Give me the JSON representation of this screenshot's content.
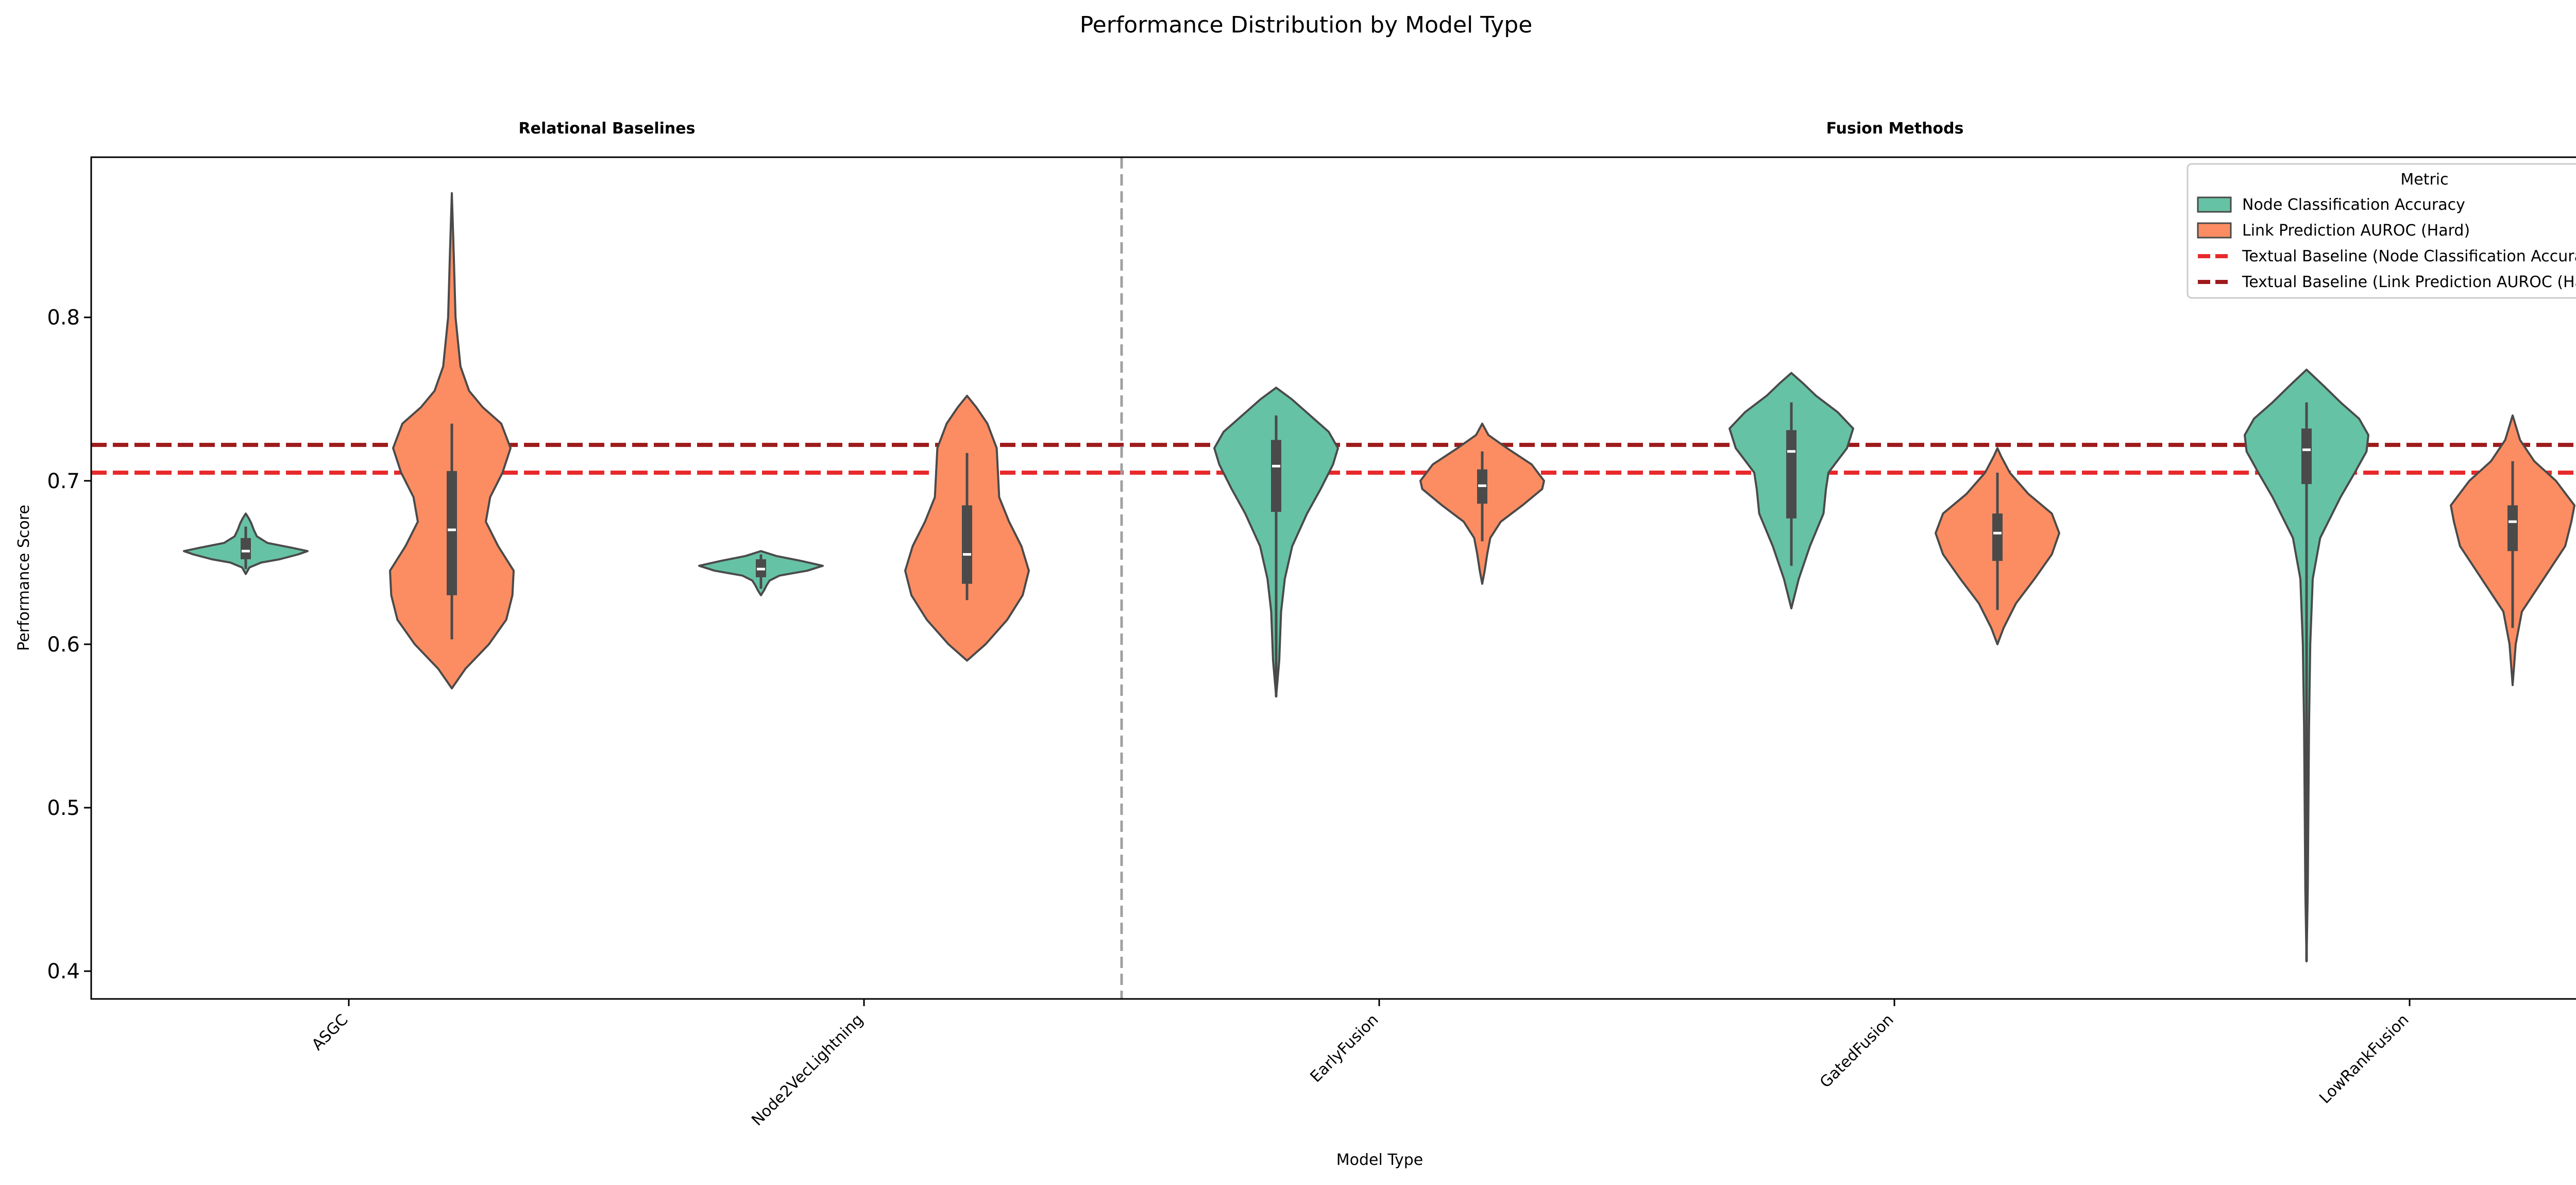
{
  "chart_data": {
    "type": "violin",
    "title": "Performance Distribution by Model Type",
    "group_titles": [
      "Relational Baselines",
      "Fusion Methods"
    ],
    "xlabel": "Model Type",
    "ylabel": "Performance Score",
    "categories": [
      "ASGC",
      "Node2VecLightning",
      "EarlyFusion",
      "GatedFusion",
      "LowRankFusion"
    ],
    "group_separator_after_index": 1,
    "ylim": [
      0.383,
      0.898
    ],
    "yticks": [
      0.4,
      0.5,
      0.6,
      0.7,
      0.8
    ],
    "ytick_labels": [
      "0.4",
      "0.5",
      "0.6",
      "0.7",
      "0.8"
    ],
    "grid": false,
    "legend": {
      "title": "Metric",
      "position": "top-right",
      "entries": [
        {
          "label": "Node Classification Accuracy",
          "kind": "patch",
          "color": "#66c2a5"
        },
        {
          "label": "Link Prediction AUROC (Hard)",
          "kind": "patch",
          "color": "#fc8d62"
        },
        {
          "label": "Textual Baseline (Node Classification Accuracy)",
          "kind": "dashed",
          "color": "#e8292b"
        },
        {
          "label": "Textual Baseline (Link Prediction AUROC (Hard))",
          "kind": "dashed",
          "color": "#9e1b1b"
        }
      ]
    },
    "baselines": [
      {
        "name": "Textual Baseline (Node Classification Accuracy)",
        "value": 0.705,
        "color": "#e8292b"
      },
      {
        "name": "Textual Baseline (Link Prediction AUROC (Hard))",
        "value": 0.722,
        "color": "#9e1b1b"
      }
    ],
    "series": [
      {
        "name": "Node Classification Accuracy",
        "color": "#66c2a5",
        "violins": [
          {
            "category": "ASGC",
            "min": 0.643,
            "max": 0.68,
            "q1": 0.652,
            "median": 0.657,
            "q3": 0.665,
            "whisker_low": 0.646,
            "whisker_high": 0.672,
            "profile": [
              [
                0.643,
                0.0
              ],
              [
                0.647,
                0.06
              ],
              [
                0.65,
                0.25
              ],
              [
                0.652,
                0.55
              ],
              [
                0.655,
                0.85
              ],
              [
                0.657,
                1.0
              ],
              [
                0.659,
                0.75
              ],
              [
                0.662,
                0.35
              ],
              [
                0.666,
                0.18
              ],
              [
                0.67,
                0.13
              ],
              [
                0.674,
                0.09
              ],
              [
                0.677,
                0.05
              ],
              [
                0.68,
                0.0
              ]
            ]
          },
          {
            "category": "Node2VecLightning",
            "min": 0.63,
            "max": 0.657,
            "q1": 0.641,
            "median": 0.646,
            "q3": 0.652,
            "whisker_low": 0.634,
            "whisker_high": 0.655,
            "profile": [
              [
                0.63,
                0.0
              ],
              [
                0.633,
                0.05
              ],
              [
                0.636,
                0.09
              ],
              [
                0.639,
                0.14
              ],
              [
                0.642,
                0.3
              ],
              [
                0.645,
                0.75
              ],
              [
                0.648,
                1.0
              ],
              [
                0.651,
                0.65
              ],
              [
                0.654,
                0.25
              ],
              [
                0.657,
                0.0
              ]
            ]
          },
          {
            "category": "EarlyFusion",
            "min": 0.568,
            "max": 0.757,
            "q1": 0.681,
            "median": 0.709,
            "q3": 0.725,
            "whisker_low": 0.568,
            "whisker_high": 0.74,
            "profile": [
              [
                0.568,
                0.0
              ],
              [
                0.59,
                0.05
              ],
              [
                0.62,
                0.08
              ],
              [
                0.64,
                0.14
              ],
              [
                0.66,
                0.26
              ],
              [
                0.68,
                0.5
              ],
              [
                0.695,
                0.72
              ],
              [
                0.71,
                0.92
              ],
              [
                0.72,
                1.0
              ],
              [
                0.73,
                0.85
              ],
              [
                0.74,
                0.55
              ],
              [
                0.75,
                0.25
              ],
              [
                0.757,
                0.0
              ]
            ]
          },
          {
            "category": "GatedFusion",
            "min": 0.622,
            "max": 0.766,
            "q1": 0.677,
            "median": 0.718,
            "q3": 0.731,
            "whisker_low": 0.648,
            "whisker_high": 0.748,
            "profile": [
              [
                0.622,
                0.0
              ],
              [
                0.64,
                0.12
              ],
              [
                0.66,
                0.3
              ],
              [
                0.68,
                0.52
              ],
              [
                0.695,
                0.56
              ],
              [
                0.705,
                0.6
              ],
              [
                0.72,
                0.9
              ],
              [
                0.732,
                1.0
              ],
              [
                0.742,
                0.75
              ],
              [
                0.752,
                0.4
              ],
              [
                0.76,
                0.18
              ],
              [
                0.766,
                0.0
              ]
            ]
          },
          {
            "category": "LowRankFusion",
            "min": 0.406,
            "max": 0.768,
            "q1": 0.698,
            "median": 0.719,
            "q3": 0.732,
            "whisker_low": 0.406,
            "whisker_high": 0.748,
            "profile": [
              [
                0.406,
                0.0
              ],
              [
                0.45,
                0.02
              ],
              [
                0.5,
                0.03
              ],
              [
                0.55,
                0.04
              ],
              [
                0.6,
                0.06
              ],
              [
                0.64,
                0.1
              ],
              [
                0.665,
                0.22
              ],
              [
                0.69,
                0.55
              ],
              [
                0.705,
                0.78
              ],
              [
                0.718,
                0.97
              ],
              [
                0.728,
                1.0
              ],
              [
                0.738,
                0.85
              ],
              [
                0.748,
                0.55
              ],
              [
                0.758,
                0.28
              ],
              [
                0.768,
                0.0
              ]
            ]
          }
        ]
      },
      {
        "name": "Link Prediction AUROC (Hard)",
        "color": "#fc8d62",
        "violins": [
          {
            "category": "ASGC",
            "min": 0.573,
            "max": 0.876,
            "q1": 0.63,
            "median": 0.67,
            "q3": 0.706,
            "whisker_low": 0.603,
            "whisker_high": 0.735,
            "profile": [
              [
                0.573,
                0.0
              ],
              [
                0.585,
                0.22
              ],
              [
                0.6,
                0.6
              ],
              [
                0.615,
                0.88
              ],
              [
                0.63,
                0.98
              ],
              [
                0.645,
                1.0
              ],
              [
                0.66,
                0.75
              ],
              [
                0.675,
                0.55
              ],
              [
                0.69,
                0.62
              ],
              [
                0.705,
                0.82
              ],
              [
                0.72,
                0.95
              ],
              [
                0.735,
                0.8
              ],
              [
                0.745,
                0.5
              ],
              [
                0.755,
                0.28
              ],
              [
                0.77,
                0.14
              ],
              [
                0.8,
                0.06
              ],
              [
                0.84,
                0.03
              ],
              [
                0.876,
                0.0
              ]
            ]
          },
          {
            "category": "Node2VecLightning",
            "min": 0.59,
            "max": 0.752,
            "q1": 0.637,
            "median": 0.655,
            "q3": 0.685,
            "whisker_low": 0.627,
            "whisker_high": 0.717,
            "profile": [
              [
                0.59,
                0.0
              ],
              [
                0.6,
                0.3
              ],
              [
                0.615,
                0.65
              ],
              [
                0.63,
                0.9
              ],
              [
                0.645,
                1.0
              ],
              [
                0.66,
                0.88
              ],
              [
                0.675,
                0.68
              ],
              [
                0.69,
                0.52
              ],
              [
                0.705,
                0.5
              ],
              [
                0.72,
                0.48
              ],
              [
                0.735,
                0.33
              ],
              [
                0.745,
                0.15
              ],
              [
                0.752,
                0.0
              ]
            ]
          },
          {
            "category": "EarlyFusion",
            "min": 0.637,
            "max": 0.735,
            "q1": 0.686,
            "median": 0.697,
            "q3": 0.707,
            "whisker_low": 0.663,
            "whisker_high": 0.718,
            "profile": [
              [
                0.637,
                0.0
              ],
              [
                0.645,
                0.04
              ],
              [
                0.655,
                0.08
              ],
              [
                0.665,
                0.13
              ],
              [
                0.675,
                0.3
              ],
              [
                0.685,
                0.65
              ],
              [
                0.695,
                0.97
              ],
              [
                0.7,
                1.0
              ],
              [
                0.71,
                0.8
              ],
              [
                0.72,
                0.4
              ],
              [
                0.728,
                0.1
              ],
              [
                0.735,
                0.0
              ]
            ]
          },
          {
            "category": "GatedFusion",
            "min": 0.6,
            "max": 0.72,
            "q1": 0.651,
            "median": 0.668,
            "q3": 0.68,
            "whisker_low": 0.621,
            "whisker_high": 0.705,
            "profile": [
              [
                0.6,
                0.0
              ],
              [
                0.61,
                0.1
              ],
              [
                0.625,
                0.3
              ],
              [
                0.64,
                0.6
              ],
              [
                0.655,
                0.88
              ],
              [
                0.668,
                1.0
              ],
              [
                0.68,
                0.88
              ],
              [
                0.692,
                0.5
              ],
              [
                0.705,
                0.2
              ],
              [
                0.715,
                0.06
              ],
              [
                0.72,
                0.0
              ]
            ]
          },
          {
            "category": "LowRankFusion",
            "min": 0.575,
            "max": 0.74,
            "q1": 0.657,
            "median": 0.675,
            "q3": 0.685,
            "whisker_low": 0.61,
            "whisker_high": 0.712,
            "profile": [
              [
                0.575,
                0.0
              ],
              [
                0.6,
                0.05
              ],
              [
                0.62,
                0.15
              ],
              [
                0.64,
                0.5
              ],
              [
                0.66,
                0.85
              ],
              [
                0.675,
                0.95
              ],
              [
                0.685,
                1.0
              ],
              [
                0.7,
                0.7
              ],
              [
                0.712,
                0.35
              ],
              [
                0.725,
                0.12
              ],
              [
                0.74,
                0.0
              ]
            ]
          }
        ]
      }
    ]
  }
}
